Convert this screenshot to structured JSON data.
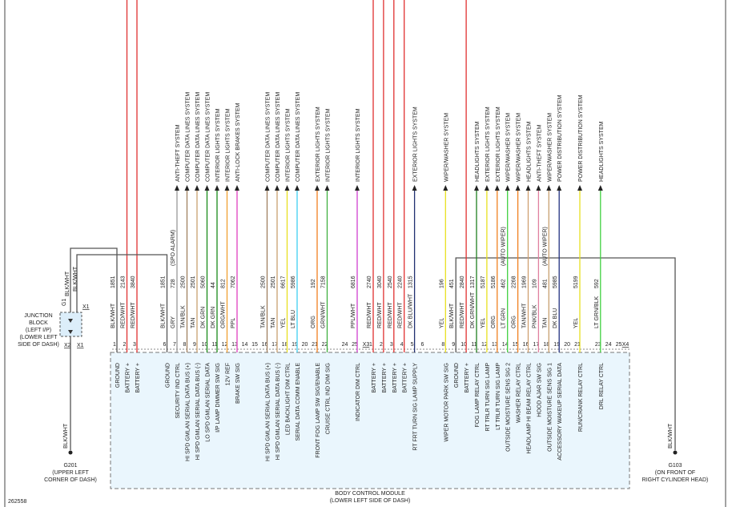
{
  "diagram_id": "262558",
  "module": {
    "name": "BODY CONTROL MODULE",
    "location": "(LOWER LEFT SIDE OF DASH)"
  },
  "connectors": [
    {
      "id": "X3",
      "pins": [
        {
          "pin": "1",
          "function": "GROUND",
          "wire": "BLK/WHT",
          "circuit": "1851",
          "color": "#555555"
        },
        {
          "pin": "2",
          "function": "BATTERY +",
          "wire": "RED/WHT",
          "circuit": "2143",
          "color": "#e03030"
        },
        {
          "pin": "3",
          "function": "BATTERY +",
          "wire": "RED/WHT",
          "circuit": "3840",
          "color": "#e03030"
        },
        {
          "pin": "6",
          "function": "GROUND",
          "wire": "BLK/WHT",
          "circuit": "1851",
          "color": "#555555"
        },
        {
          "pin": "7",
          "function": "SECURITY IND CTRL",
          "wire": "GRY",
          "circuit": "728",
          "note": "(SPO ALARM)",
          "system": "ANTI-THEFT SYSTEM",
          "color": "#999999"
        },
        {
          "pin": "8",
          "function": "HI SPD GMLAN SERIAL DATA BUS (+)",
          "wire": "TAN/BLK",
          "circuit": "2500",
          "system": "COMPUTER DATA LINES SYSTEM",
          "color": "#a08060"
        },
        {
          "pin": "9",
          "function": "HI SPD GMLAN SERIAL DATA BUS (-)",
          "wire": "TAN",
          "circuit": "2501",
          "system": "COMPUTER DATA LINES SYSTEM",
          "color": "#c8a070"
        },
        {
          "pin": "10",
          "function": "LO SPD GMLAN SERIAL DATA",
          "wire": "DK GRN",
          "circuit": "5060",
          "system": "COMPUTER DATA LINES SYSTEM",
          "color": "#1a8a1a"
        },
        {
          "pin": "11",
          "function": "I/P LAMP DIMMER SW SIG",
          "wire": "DK GRN",
          "circuit": "44",
          "system": "INTERIOR LIGHTS SYSTEM",
          "color": "#1a8a1a"
        },
        {
          "pin": "12",
          "function": "12V REF",
          "wire": "ORG/WHT",
          "circuit": "812",
          "system": "INTERIOR LIGHTS SYSTEM",
          "color": "#f0a030"
        },
        {
          "pin": "13",
          "function": "BRAKE SW SIG",
          "wire": "PPL",
          "circuit": "7062",
          "system": "ANTI-LOCK BRAKES SYSTEM",
          "color": "#e040c0"
        },
        {
          "pin": "14"
        },
        {
          "pin": "15"
        },
        {
          "pin": "16",
          "function": "HI SPD GMLAN SERIAL DATA BUS (+)",
          "wire": "TAN/BLK",
          "circuit": "2500",
          "system": "COMPUTER DATA LINES SYSTEM",
          "color": "#a08060"
        },
        {
          "pin": "17",
          "function": "HI SPD GMLAN SERIAL DATA BUS (-)",
          "wire": "TAN",
          "circuit": "2501",
          "system": "COMPUTER DATA LINES SYSTEM",
          "color": "#c8a070"
        },
        {
          "pin": "18",
          "function": "LED BACKLIGHT DIM CTRL",
          "wire": "YEL",
          "circuit": "6617",
          "system": "INTERIOR LIGHTS SYSTEM",
          "color": "#e8e020"
        },
        {
          "pin": "19",
          "function": "SERIAL DATA COMM ENABLE",
          "wire": "LT BLU",
          "circuit": "5986",
          "system": "COMPUTER DATA LINES SYSTEM",
          "color": "#40d0f0"
        },
        {
          "pin": "20"
        },
        {
          "pin": "21",
          "function": "FRONT FOG LAMP SW SIG/ENABLE",
          "wire": "ORG",
          "circuit": "192",
          "system": "EXTERIOR LIGHTS SYSTEM",
          "color": "#f08020"
        },
        {
          "pin": "22",
          "function": "CRUISE CTRL IND DIM SIG",
          "wire": "GRN/WHT",
          "circuit": "7158",
          "system": "INTERIOR LIGHTS SYSTEM",
          "color": "#40b040"
        },
        {
          "pin": "24"
        },
        {
          "pin": "25",
          "function": "INDICATOR DIM CTRL",
          "wire": "PPL/WHT",
          "circuit": "6816",
          "system": "INTERIOR LIGHTS SYSTEM",
          "color": "#d040d0"
        }
      ]
    },
    {
      "id": "X4",
      "pins": [
        {
          "pin": "1",
          "function": "BATTERY +",
          "wire": "RED/WHT",
          "circuit": "2740",
          "color": "#e03030"
        },
        {
          "pin": "2",
          "function": "BATTERY +",
          "wire": "RED/WHT",
          "circuit": "3040",
          "color": "#e03030"
        },
        {
          "pin": "3",
          "function": "BATTERY +",
          "wire": "RED/WHT",
          "circuit": "2540",
          "color": "#e03030"
        },
        {
          "pin": "4",
          "function": "BATTERY +",
          "wire": "RED/WHT",
          "circuit": "2240",
          "color": "#e03030"
        },
        {
          "pin": "5",
          "function": "RT FRT TURN SIG LAMP SUPPLY",
          "wire": "DK BLU/WHT",
          "circuit": "1315",
          "system": "EXTERIOR LIGHTS SYSTEM",
          "color": "#203070"
        },
        {
          "pin": "6"
        },
        {
          "pin": "8",
          "function": "WIPER MOTOR PARK SW SIG",
          "wire": "YEL",
          "circuit": "196",
          "system": "WIPER/WASHER SYSTEM",
          "color": "#e8e020"
        },
        {
          "pin": "9",
          "function": "GROUND",
          "wire": "BLK/WHT",
          "circuit": "451",
          "color": "#555555"
        },
        {
          "pin": "10",
          "function": "BATTERY +",
          "wire": "RED/WHT",
          "circuit": "2840",
          "color": "#e03030"
        },
        {
          "pin": "11",
          "function": "FOG LAMP RELAY CTRL",
          "wire": "DK GRN/WHT",
          "circuit": "1317",
          "system": "HEADLIGHTS SYSTEM",
          "color": "#208020"
        },
        {
          "pin": "12",
          "function": "RT TRLR TURN SIG LAMP",
          "wire": "YEL",
          "circuit": "5187",
          "system": "EXTERIOR LIGHTS SYSTEM",
          "color": "#e8e020"
        },
        {
          "pin": "13",
          "function": "LT TRLR TURN SIG LAMP",
          "wire": "ORG",
          "circuit": "5186",
          "system": "EXTERIOR LIGHTS SYSTEM",
          "color": "#f08020"
        },
        {
          "pin": "14",
          "function": "OUTSIDE MOISTURE SENS SIG 2",
          "wire": "LT GRN",
          "circuit": "462",
          "note": "(AUTO WIPER)",
          "system": "WIPER/WASHER SYSTEM",
          "color": "#40d040"
        },
        {
          "pin": "15",
          "function": "WASHER RELAY CTRL",
          "wire": "ORG",
          "circuit": "2268",
          "system": "WIPER/WASHER SYSTEM",
          "color": "#f08020"
        },
        {
          "pin": "16",
          "function": "HEADLAMP HI BEAM RELAY CTRL",
          "wire": "TAN/WHT",
          "circuit": "1969",
          "system": "HEADLIGHTS SYSTEM",
          "color": "#d0a070"
        },
        {
          "pin": "17",
          "function": "HOOD AJAR SW SIG",
          "wire": "PNK/BLK",
          "circuit": "109",
          "system": "ANTI-THEFT SYSTEM",
          "color": "#e080a0"
        },
        {
          "pin": "18",
          "function": "OUTSIDE MOISTURE SENS SIG 1",
          "wire": "TAN",
          "circuit": "481",
          "note": "(AUTO WIPER)",
          "system": "WIPER/WASHER SYSTEM",
          "color": "#c8a070"
        },
        {
          "pin": "19",
          "function": "ACCESSORY WAKEUP SERIAL DATA",
          "wire": "DK BLU",
          "circuit": "5985",
          "system": "POWER DISTRIBUTION SYSTEM",
          "color": "#203080"
        },
        {
          "pin": "20"
        },
        {
          "pin": "21",
          "function": "RUN/CRANK RELAY CTRL",
          "wire": "YEL",
          "circuit": "5199",
          "system": "POWER DISTRIBUTION SYSTEM",
          "color": "#e8e020"
        },
        {
          "pin": "23",
          "function": "DRL RELAY CTRL",
          "wire": "LT GRN/BLK",
          "circuit": "592",
          "system": "HEADLIGHTS SYSTEM",
          "color": "#40d040"
        },
        {
          "pin": "24"
        },
        {
          "pin": "25"
        }
      ]
    }
  ],
  "junction_block": {
    "lines": [
      "JUNCTION",
      "BLOCK",
      "(LEFT I/P)",
      "(LOWER LEFT",
      "SIDE OF DASH)"
    ],
    "id": "G1",
    "wires": [
      "BLK/WHT",
      "BLK/WHT"
    ],
    "connector_labels": [
      "X1",
      "X2",
      "X1"
    ]
  },
  "grounds": [
    {
      "wire": "BLK/WHT",
      "name": "G201",
      "location": [
        "(UPPER LEFT",
        "CORNER OF DASH)"
      ]
    },
    {
      "wire": "BLK/WHT",
      "name": "G103",
      "location": [
        "(ON FRONT OF",
        "RIGHT CYLINDER HEAD)"
      ]
    }
  ]
}
